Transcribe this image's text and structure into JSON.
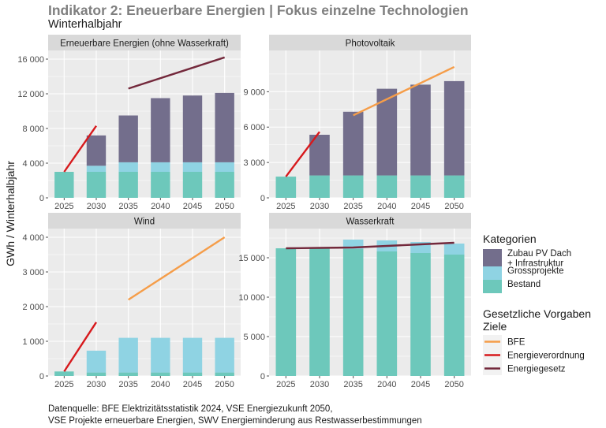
{
  "title": "Indikator 2: Eneuerbare Energien | Fokus einzelne Technologien",
  "subtitle": "Winterhalbjahr",
  "source_lines": [
    "Datenquelle: BFE Elektrizitätsstatistik 2024, VSE Energiezukunft 2050,",
    "VSE Projekte erneuerbare Energien, SWV Energieminderung aus Restwasserbestimmungen"
  ],
  "colors": {
    "panel_bg": "#ebebeb",
    "strip_bg": "#d9d9d9",
    "grid": "#ffffff",
    "zubau": "#736e8c",
    "gross": "#8fd3e3",
    "bestand": "#6dc8bb",
    "bfe": "#f59d49",
    "energieverordnung": "#d7191c",
    "energiegesetz": "#73283b"
  },
  "chart_data": {
    "type": "bar",
    "stacked": true,
    "ylabel": "GWh / Winterhalbjahr",
    "categories": [
      "2025",
      "2030",
      "2035",
      "2040",
      "2045",
      "2050"
    ],
    "stack_keys": [
      "bestand",
      "gross",
      "zubau"
    ],
    "legend": {
      "kategorien_title": "Kategorien",
      "kategorien": [
        {
          "key": "zubau",
          "lines": [
            "Zubau PV Dach",
            "+ Infrastruktur"
          ]
        },
        {
          "key": "gross",
          "lines": [
            "Grossprojekte"
          ]
        },
        {
          "key": "bestand",
          "lines": [
            "Bestand"
          ]
        }
      ],
      "ziele_title_lines": [
        "Gesetzliche Vorgaben",
        "Ziele"
      ],
      "ziele": [
        {
          "key": "bfe",
          "label": "BFE"
        },
        {
          "key": "energieverordnung",
          "label": "Energieverordnung"
        },
        {
          "key": "energiegesetz",
          "label": "Energiegesetz"
        }
      ]
    },
    "panels": [
      {
        "title": "Erneuerbare Energien (ohne Wasserkraft)",
        "ylim": [
          0,
          17000
        ],
        "yticks": [
          0,
          4000,
          8000,
          12000,
          16000
        ],
        "ytick_labels": [
          "0",
          "4 000",
          "8 000",
          "12 000",
          "16 000"
        ],
        "bestand": [
          3000,
          3000,
          3000,
          3000,
          3000,
          3000
        ],
        "gross": [
          0,
          700,
          1100,
          1100,
          1100,
          1100
        ],
        "zubau": [
          0,
          3500,
          5400,
          7400,
          7700,
          8000
        ],
        "lines": [
          {
            "key": "energieverordnung",
            "points": [
              [
                0,
                3000
              ],
              [
                1,
                8300
              ]
            ]
          },
          {
            "key": "energiegesetz",
            "points": [
              [
                2,
                12600
              ],
              [
                5,
                16200
              ]
            ]
          }
        ]
      },
      {
        "title": "Photovoltaik",
        "ylim": [
          0,
          12500
        ],
        "yticks": [
          0,
          3000,
          6000,
          9000
        ],
        "ytick_labels": [
          "0",
          "3 000",
          "6 000",
          "9 000"
        ],
        "bestand": [
          1800,
          1900,
          1900,
          1900,
          1900,
          1900
        ],
        "gross": [
          0,
          0,
          0,
          0,
          0,
          0
        ],
        "zubau": [
          0,
          3450,
          5400,
          7350,
          7700,
          8000
        ],
        "lines": [
          {
            "key": "energieverordnung",
            "points": [
              [
                0,
                1800
              ],
              [
                1,
                5600
              ]
            ]
          },
          {
            "key": "bfe",
            "points": [
              [
                2,
                7000
              ],
              [
                5,
                11100
              ]
            ]
          }
        ]
      },
      {
        "title": "Wind",
        "ylim": [
          0,
          4250
        ],
        "yticks": [
          0,
          1000,
          2000,
          3000,
          4000
        ],
        "ytick_labels": [
          "0",
          "1 000",
          "2 000",
          "3 000",
          "4 000"
        ],
        "bestand": [
          130,
          100,
          100,
          100,
          100,
          100
        ],
        "gross": [
          0,
          630,
          1000,
          1000,
          1000,
          1000
        ],
        "zubau": [
          0,
          0,
          0,
          0,
          0,
          0
        ],
        "lines": [
          {
            "key": "energieverordnung",
            "points": [
              [
                0,
                130
              ],
              [
                1,
                1550
              ]
            ]
          },
          {
            "key": "bfe",
            "points": [
              [
                2,
                2200
              ],
              [
                5,
                4000
              ]
            ]
          }
        ]
      },
      {
        "title": "Wasserkraft",
        "ylim": [
          0,
          18700
        ],
        "yticks": [
          0,
          5000,
          10000,
          15000
        ],
        "ytick_labels": [
          "0",
          "5 000",
          "10 000",
          "15 000"
        ],
        "bestand": [
          16200,
          16300,
          16100,
          15800,
          15600,
          15400
        ],
        "gross": [
          0,
          0,
          1200,
          1400,
          1400,
          1400
        ],
        "zubau": [
          0,
          0,
          0,
          0,
          0,
          0
        ],
        "lines": [
          {
            "key": "energiegesetz",
            "points": [
              [
                0,
                16200
              ],
              [
                1,
                16250
              ],
              [
                2,
                16300
              ],
              [
                3,
                16500
              ],
              [
                4,
                16700
              ],
              [
                5,
                16900
              ]
            ]
          }
        ]
      }
    ]
  }
}
